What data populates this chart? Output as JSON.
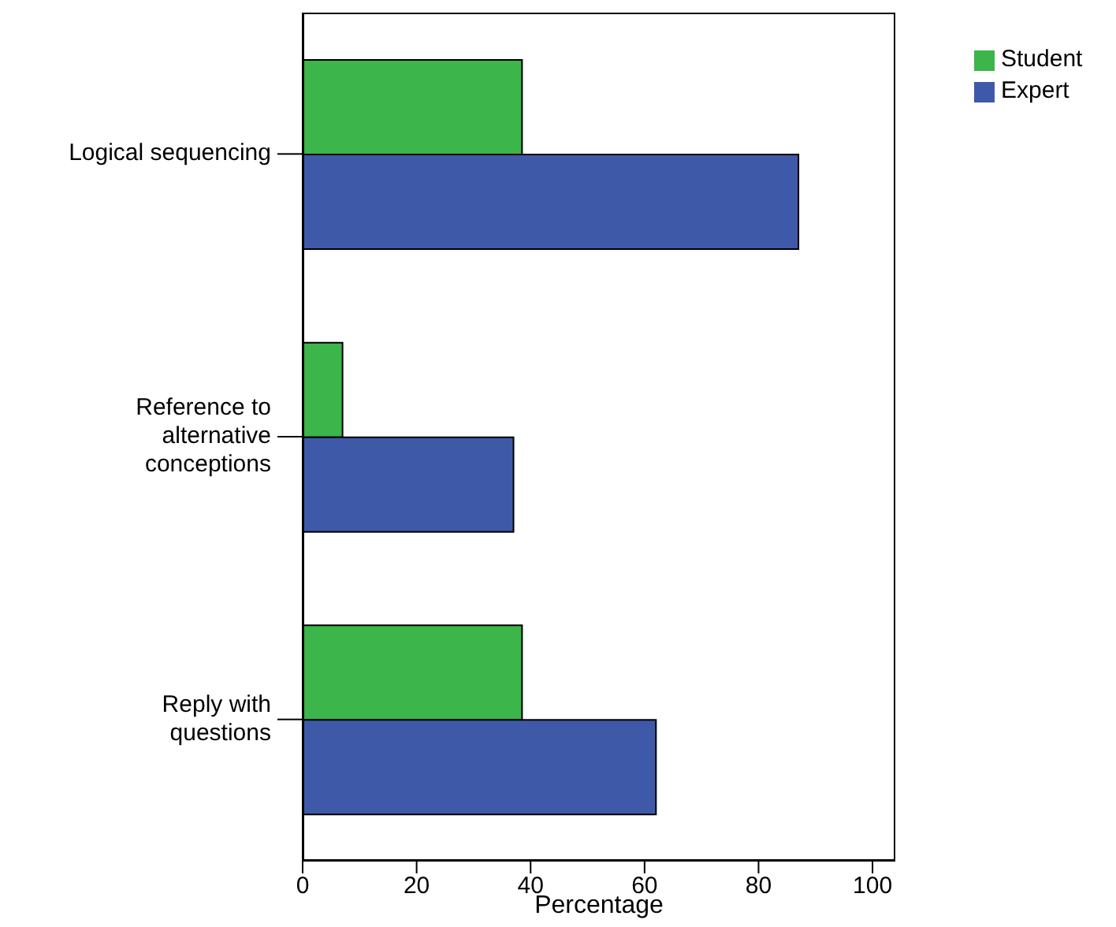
{
  "chart_data": {
    "type": "bar",
    "orientation": "horizontal",
    "xlabel": "Percentage",
    "categories": [
      "Logical sequencing",
      "Reference to alternative conceptions",
      "Reply with questions"
    ],
    "series": [
      {
        "name": "Student",
        "color": "#3cb54a",
        "values": [
          38.5,
          7,
          38.5
        ]
      },
      {
        "name": "Expert",
        "color": "#3f59a9",
        "values": [
          87,
          37,
          62
        ]
      }
    ],
    "xlim": [
      0,
      104
    ],
    "xticks": [
      0,
      20,
      40,
      60,
      80,
      100
    ],
    "legend": "top right",
    "grid": false
  }
}
